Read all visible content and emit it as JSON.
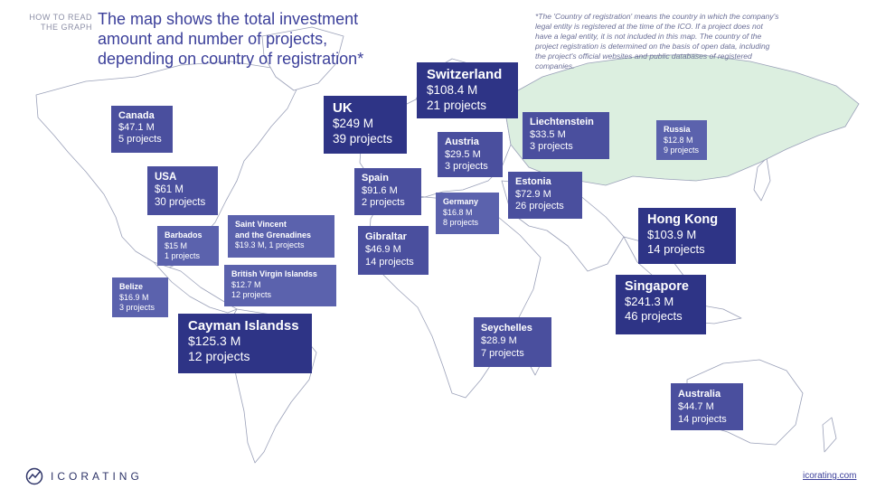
{
  "how_to": [
    "HOW TO READ",
    "THE GRAPH"
  ],
  "title": [
    "The map shows the total investment",
    "amount and number of projects,",
    "depending on country of registration*"
  ],
  "footnote": "*The 'Country of registration' means the country in which the company's legal entity is registered at the time of the ICO. If a project does not have a legal entity, it is not included in this map. The country of the project registration is determined on the basis of open data, including the project's official websites and public databases of registered companies.",
  "colors": {
    "highlight_land": "#dcefe0",
    "land": "#ffffff",
    "border": "#9aa0b8",
    "box_big": "#2e3486",
    "box_mid": "#4a4f9e",
    "box_small": "#5b62ad"
  },
  "countries": [
    {
      "name": "Canada",
      "amount": "$47.1 M",
      "projects": "5 projects"
    },
    {
      "name": "USA",
      "amount": "$61 M",
      "projects": "30 projects"
    },
    {
      "name": "Barbados",
      "amount": "$15 M",
      "projects": "1 projects"
    },
    {
      "name": "Saint Vincent and the Grenadines",
      "amount": "$19.3 M",
      "projects": "1 projects"
    },
    {
      "name": "British Virgin Islandss",
      "amount": "$12.7 M",
      "projects": "12 projects"
    },
    {
      "name": "Belize",
      "amount": "$16.9 M",
      "projects": "3 projects"
    },
    {
      "name": "Cayman Islandss",
      "amount": "$125.3 M",
      "projects": "12 projects"
    },
    {
      "name": "UK",
      "amount": "$249 M",
      "projects": "39 projects"
    },
    {
      "name": "Switzerland",
      "amount": "$108.4 M",
      "projects": "21 projects"
    },
    {
      "name": "Austria",
      "amount": "$29.5 M",
      "projects": "3 projects"
    },
    {
      "name": "Liechtenstein",
      "amount": "$33.5 M",
      "projects": "3 projects"
    },
    {
      "name": "Russia",
      "amount": "$12.8 M",
      "projects": "9 projects"
    },
    {
      "name": "Spain",
      "amount": "$91.6 M",
      "projects": "2 projects"
    },
    {
      "name": "Germany",
      "amount": "$16.8 M",
      "projects": "8 projects"
    },
    {
      "name": "Estonia",
      "amount": "$72.9 M",
      "projects": "26 projects"
    },
    {
      "name": "Gibraltar",
      "amount": "$46.9 M",
      "projects": "14 projects"
    },
    {
      "name": "Hong Kong",
      "amount": "$103.9 M",
      "projects": "14 projects"
    },
    {
      "name": "Singapore",
      "amount": "$241.3 M",
      "projects": "46 projects"
    },
    {
      "name": "Seychelles",
      "amount": "$28.9 M",
      "projects": "7 projects"
    },
    {
      "name": "Australia",
      "amount": "$44.7 M",
      "projects": "14 projects"
    }
  ],
  "saint_vincent_lines": [
    "Saint Vincent",
    "and the Grenadines"
  ],
  "saint_vincent_combined": "$19.3 M, 1 projects",
  "logo": {
    "text": "ICORATING",
    "icon": "icorating-logo-icon"
  },
  "site_link": "icorating.com"
}
